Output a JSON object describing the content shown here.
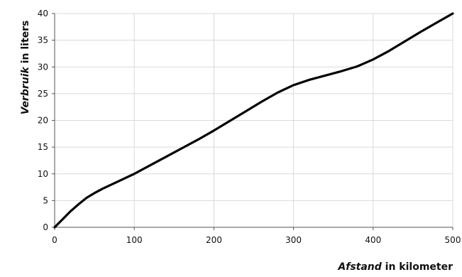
{
  "chart_data": {
    "type": "line",
    "xlabel": {
      "italic": "Afstand",
      "rest": " in kilometer"
    },
    "ylabel": {
      "italic": "Verbruik",
      "rest": " in liters"
    },
    "xlim": [
      0,
      500
    ],
    "ylim": [
      0,
      40
    ],
    "x_ticks": [
      "0",
      "100",
      "200",
      "300",
      "400",
      "500"
    ],
    "y_ticks": [
      "0",
      "5",
      "10",
      "15",
      "20",
      "25",
      "30",
      "35",
      "40"
    ],
    "grid": true,
    "legend": "none",
    "series": [
      {
        "color": "#000000",
        "x": [
          0,
          10,
          20,
          30,
          40,
          50,
          60,
          80,
          100,
          120,
          140,
          160,
          180,
          200,
          220,
          240,
          260,
          280,
          300,
          320,
          340,
          360,
          380,
          400,
          420,
          440,
          460,
          480,
          500
        ],
        "y": [
          0,
          1.5,
          3.0,
          4.3,
          5.5,
          6.4,
          7.2,
          8.6,
          10.0,
          11.6,
          13.2,
          14.8,
          16.4,
          18.1,
          19.9,
          21.7,
          23.5,
          25.2,
          26.6,
          27.6,
          28.4,
          29.2,
          30.1,
          31.4,
          33.0,
          34.8,
          36.6,
          38.3,
          40.0
        ]
      }
    ]
  }
}
